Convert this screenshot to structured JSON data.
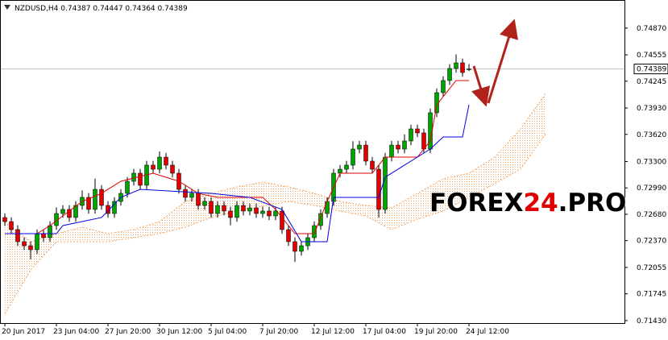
{
  "chart_data": {
    "type": "candlestick",
    "title": "NZDUSD,H4  0.74387 0.74447 0.74364 0.74389",
    "watermark": [
      "FOREX",
      "24",
      ".PRO"
    ],
    "last_price": 0.74389,
    "ylim": [
      0.7141,
      0.752
    ],
    "yticks": [
      {
        "value": 0.7487,
        "label": "0.74870"
      },
      0.74555,
      0.74245,
      {
        "value": 0.7393,
        "label": "0.73930"
      },
      {
        "value": 0.7362,
        "label": "0.73620"
      },
      {
        "value": 0.733,
        "label": "0.73300"
      },
      {
        "value": 0.7299,
        "label": "0.72990"
      },
      {
        "value": 0.7268,
        "label": "0.72680"
      },
      {
        "value": 0.7237,
        "label": "0.72370"
      },
      0.72055,
      0.71745,
      {
        "value": 0.7143,
        "label": "0.71430"
      }
    ],
    "categories": [
      "20 Jun 2017",
      null,
      null,
      null,
      null,
      null,
      null,
      null,
      "23 Jun 04:00",
      null,
      null,
      null,
      null,
      null,
      null,
      null,
      "27 Jun 20:00",
      null,
      null,
      null,
      null,
      null,
      null,
      null,
      "30 Jun 12:00",
      null,
      null,
      null,
      null,
      null,
      null,
      null,
      "5 Jul 04:00",
      null,
      null,
      null,
      null,
      null,
      null,
      null,
      "7 Jul 20:00",
      null,
      null,
      null,
      null,
      null,
      null,
      null,
      "12 Jul 12:00",
      null,
      null,
      null,
      null,
      null,
      null,
      null,
      "17 Jul 04:00",
      null,
      null,
      null,
      null,
      null,
      null,
      null,
      "19 Jul 20:00",
      null,
      null,
      null,
      null,
      null,
      null,
      null,
      "24 Jul 12:00"
    ],
    "up_color": "#00a400",
    "down_color": "#e00000",
    "open": [
      0.72642,
      0.72594,
      0.725,
      0.72358,
      0.7231,
      0.72263,
      0.72452,
      0.72405,
      0.72547,
      0.72689,
      0.72737,
      0.72642,
      0.72784,
      0.72879,
      0.72737,
      0.72973,
      0.72784,
      0.72689,
      0.72831,
      0.72926,
      0.73068,
      0.73163,
      0.73021,
      0.73258,
      0.7321,
      0.73352,
      0.73258,
      0.73163,
      0.72973,
      0.72879,
      0.72926,
      0.72784,
      0.72831,
      0.72689,
      0.72784,
      0.72718,
      0.72642,
      0.72784,
      0.72718,
      0.72755,
      0.72689,
      0.72718,
      0.72661,
      0.72718,
      0.725,
      0.72358,
      0.72244,
      0.7231,
      0.72405,
      0.72547,
      0.72689,
      0.72831,
      0.73163,
      0.7321,
      0.73258,
      0.73447,
      0.73494,
      0.73305,
      0.7321,
      0.72737,
      0.73352,
      0.73494,
      0.73447,
      0.73542,
      0.73684,
      0.73637,
      0.73447,
      0.73874,
      0.7411,
      0.74253,
      0.74395,
      0.74461,
      0.74387
    ],
    "high": [
      0.72692,
      0.72644,
      0.7255,
      0.72408,
      0.7236,
      0.72502,
      0.72502,
      0.72597,
      0.7276,
      0.72787,
      0.72787,
      0.72834,
      0.7296,
      0.72929,
      0.731,
      0.73023,
      0.72834,
      0.72881,
      0.72976,
      0.73118,
      0.73213,
      0.73213,
      0.73308,
      0.73308,
      0.7342,
      0.73402,
      0.73308,
      0.73213,
      0.73023,
      0.72976,
      0.72976,
      0.72881,
      0.72881,
      0.72834,
      0.72834,
      0.72768,
      0.72834,
      0.72834,
      0.72805,
      0.72805,
      0.72768,
      0.72768,
      0.72768,
      0.72768,
      0.7255,
      0.72408,
      0.7236,
      0.72455,
      0.72597,
      0.72739,
      0.72881,
      0.73213,
      0.7326,
      0.73308,
      0.7354,
      0.73544,
      0.73544,
      0.73355,
      0.7326,
      0.73402,
      0.73544,
      0.73544,
      0.7362,
      0.73734,
      0.73734,
      0.73687,
      0.73924,
      0.7416,
      0.74303,
      0.74445,
      0.7456,
      0.74511,
      0.74447
    ],
    "low": [
      0.72544,
      0.7245,
      0.72308,
      0.7226,
      0.7215,
      0.72213,
      0.72355,
      0.72355,
      0.72497,
      0.72639,
      0.72592,
      0.72592,
      0.72734,
      0.72687,
      0.72687,
      0.72734,
      0.72639,
      0.72639,
      0.72781,
      0.72876,
      0.73018,
      0.72971,
      0.72971,
      0.7316,
      0.7316,
      0.73208,
      0.73113,
      0.72923,
      0.72829,
      0.72829,
      0.72734,
      0.72734,
      0.72639,
      0.72639,
      0.72668,
      0.7255,
      0.72592,
      0.72668,
      0.72668,
      0.72639,
      0.72639,
      0.72611,
      0.72611,
      0.7245,
      0.72308,
      0.7212,
      0.72194,
      0.7226,
      0.72355,
      0.72497,
      0.72639,
      0.72781,
      0.73113,
      0.7316,
      0.73208,
      0.73397,
      0.73255,
      0.7316,
      0.7264,
      0.72687,
      0.73302,
      0.73397,
      0.73397,
      0.73492,
      0.73587,
      0.73397,
      0.73397,
      0.73824,
      0.7406,
      0.74203,
      0.74345,
      0.74297,
      0.74364
    ],
    "close": [
      0.72594,
      0.725,
      0.72358,
      0.7231,
      0.72263,
      0.72452,
      0.72405,
      0.72547,
      0.72689,
      0.72737,
      0.72642,
      0.72784,
      0.72879,
      0.72737,
      0.72973,
      0.72784,
      0.72689,
      0.72831,
      0.72926,
      0.73068,
      0.73163,
      0.73021,
      0.73258,
      0.7321,
      0.73352,
      0.73258,
      0.73163,
      0.72973,
      0.72879,
      0.72926,
      0.72784,
      0.72831,
      0.72689,
      0.72784,
      0.72718,
      0.72642,
      0.72784,
      0.72718,
      0.72755,
      0.72689,
      0.72718,
      0.72661,
      0.72718,
      0.725,
      0.72358,
      0.72244,
      0.7231,
      0.72405,
      0.72547,
      0.72689,
      0.72831,
      0.73163,
      0.7321,
      0.73258,
      0.73447,
      0.73494,
      0.73305,
      0.7321,
      0.72737,
      0.73352,
      0.73494,
      0.73447,
      0.73542,
      0.73684,
      0.73637,
      0.73447,
      0.73874,
      0.7411,
      0.74253,
      0.74395,
      0.74461,
      0.74347,
      0.74389
    ],
    "lines": [
      {
        "color": "#e00000",
        "x": [
          0,
          5,
          7,
          12,
          15,
          18,
          23,
          27,
          30,
          33,
          40,
          42,
          45,
          48,
          50,
          52,
          57,
          59,
          64,
          66,
          67,
          70,
          72
        ],
        "values": [
          0.72452,
          0.72452,
          0.72547,
          0.72831,
          0.72926,
          0.73068,
          0.73163,
          0.73068,
          0.72926,
          0.72879,
          0.72879,
          0.72737,
          0.72452,
          0.72452,
          0.72831,
          0.73163,
          0.73163,
          0.73352,
          0.73352,
          0.73542,
          0.73968,
          0.74253,
          0.74253
        ]
      },
      {
        "color": "#0000e0",
        "x": [
          0,
          8,
          9,
          15,
          18,
          21,
          32,
          38,
          43,
          46,
          50,
          51,
          58,
          59,
          62,
          66,
          68,
          71,
          72
        ],
        "values": [
          0.72452,
          0.72452,
          0.72547,
          0.72642,
          0.72879,
          0.72973,
          0.72926,
          0.72879,
          0.72737,
          0.72358,
          0.72358,
          0.72879,
          0.72879,
          0.73116,
          0.73258,
          0.73447,
          0.73589,
          0.73589,
          0.73968
        ]
      }
    ],
    "cloud": {
      "color": "#f4a460",
      "x": [
        0,
        4,
        8,
        12,
        16,
        20,
        24,
        28,
        32,
        36,
        40,
        44,
        48,
        52,
        56,
        60,
        64,
        68,
        72,
        76,
        80,
        84
      ],
      "upper": [
        0.72594,
        0.72358,
        0.72452,
        0.72528,
        0.72452,
        0.725,
        0.72594,
        0.72831,
        0.72926,
        0.73002,
        0.73059,
        0.73002,
        0.72926,
        0.72831,
        0.72784,
        0.72755,
        0.72926,
        0.73097,
        0.73163,
        0.73352,
        0.73684,
        0.7411
      ],
      "lower": [
        0.71505,
        0.72026,
        0.72358,
        0.72358,
        0.72358,
        0.72405,
        0.72452,
        0.72528,
        0.72642,
        0.72718,
        0.72774,
        0.72831,
        0.72784,
        0.72718,
        0.72661,
        0.725,
        0.72623,
        0.72718,
        0.72879,
        0.7304,
        0.7321,
        0.73637
      ]
    }
  }
}
